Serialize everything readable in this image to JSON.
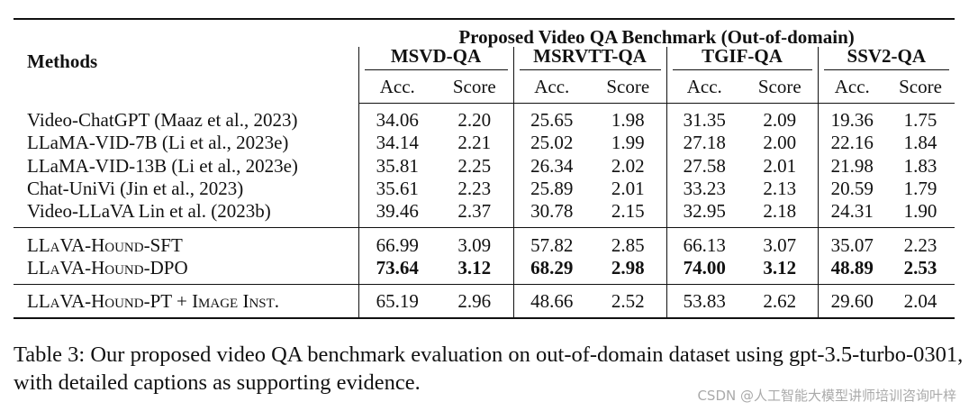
{
  "table": {
    "method_header": "Methods",
    "group_title": "Proposed Video QA Benchmark (Out-of-domain)",
    "datasets": [
      "MSVD-QA",
      "MSRVTT-QA",
      "TGIF-QA",
      "SSV2-QA"
    ],
    "metrics": [
      "Acc.",
      "Score"
    ],
    "sections": [
      {
        "rows": [
          {
            "method": "Video-ChatGPT (Maaz et al., 2023)",
            "values": [
              "34.06",
              "2.20",
              "25.65",
              "1.98",
              "31.35",
              "2.09",
              "19.36",
              "1.75"
            ]
          },
          {
            "method": "LLaMA-VID-7B (Li et al., 2023e)",
            "values": [
              "34.14",
              "2.21",
              "25.02",
              "1.99",
              "27.18",
              "2.00",
              "22.16",
              "1.84"
            ]
          },
          {
            "method": "LLaMA-VID-13B (Li et al., 2023e)",
            "values": [
              "35.81",
              "2.25",
              "26.34",
              "2.02",
              "27.58",
              "2.01",
              "21.98",
              "1.83"
            ]
          },
          {
            "method": "Chat-UniVi (Jin et al., 2023)",
            "values": [
              "35.61",
              "2.23",
              "25.89",
              "2.01",
              "33.23",
              "2.13",
              "20.59",
              "1.79"
            ]
          },
          {
            "method": "Video-LLaVA Lin et al. (2023b)",
            "values": [
              "39.46",
              "2.37",
              "30.78",
              "2.15",
              "32.95",
              "2.18",
              "24.31",
              "1.90"
            ]
          }
        ]
      },
      {
        "rows": [
          {
            "method": "LLaVA-Hound-SFT",
            "small_caps": true,
            "values": [
              "66.99",
              "3.09",
              "57.82",
              "2.85",
              "66.13",
              "3.07",
              "35.07",
              "2.23"
            ]
          },
          {
            "method": "LLaVA-Hound-DPO",
            "small_caps": true,
            "bold": true,
            "values": [
              "73.64",
              "3.12",
              "68.29",
              "2.98",
              "74.00",
              "3.12",
              "48.89",
              "2.53"
            ]
          }
        ]
      },
      {
        "rows": [
          {
            "method": "LLaVA-Hound-PT + Image Inst.",
            "small_caps": true,
            "values": [
              "65.19",
              "2.96",
              "48.66",
              "2.52",
              "53.83",
              "2.62",
              "29.60",
              "2.04"
            ]
          }
        ]
      }
    ]
  },
  "caption": "Table 3: Our proposed video QA benchmark evaluation on out-of-domain dataset using gpt-3.5-turbo-0301, with detailed captions as supporting evidence.",
  "watermark": "CSDN @人工智能大模型讲师培训咨询叶梓"
}
